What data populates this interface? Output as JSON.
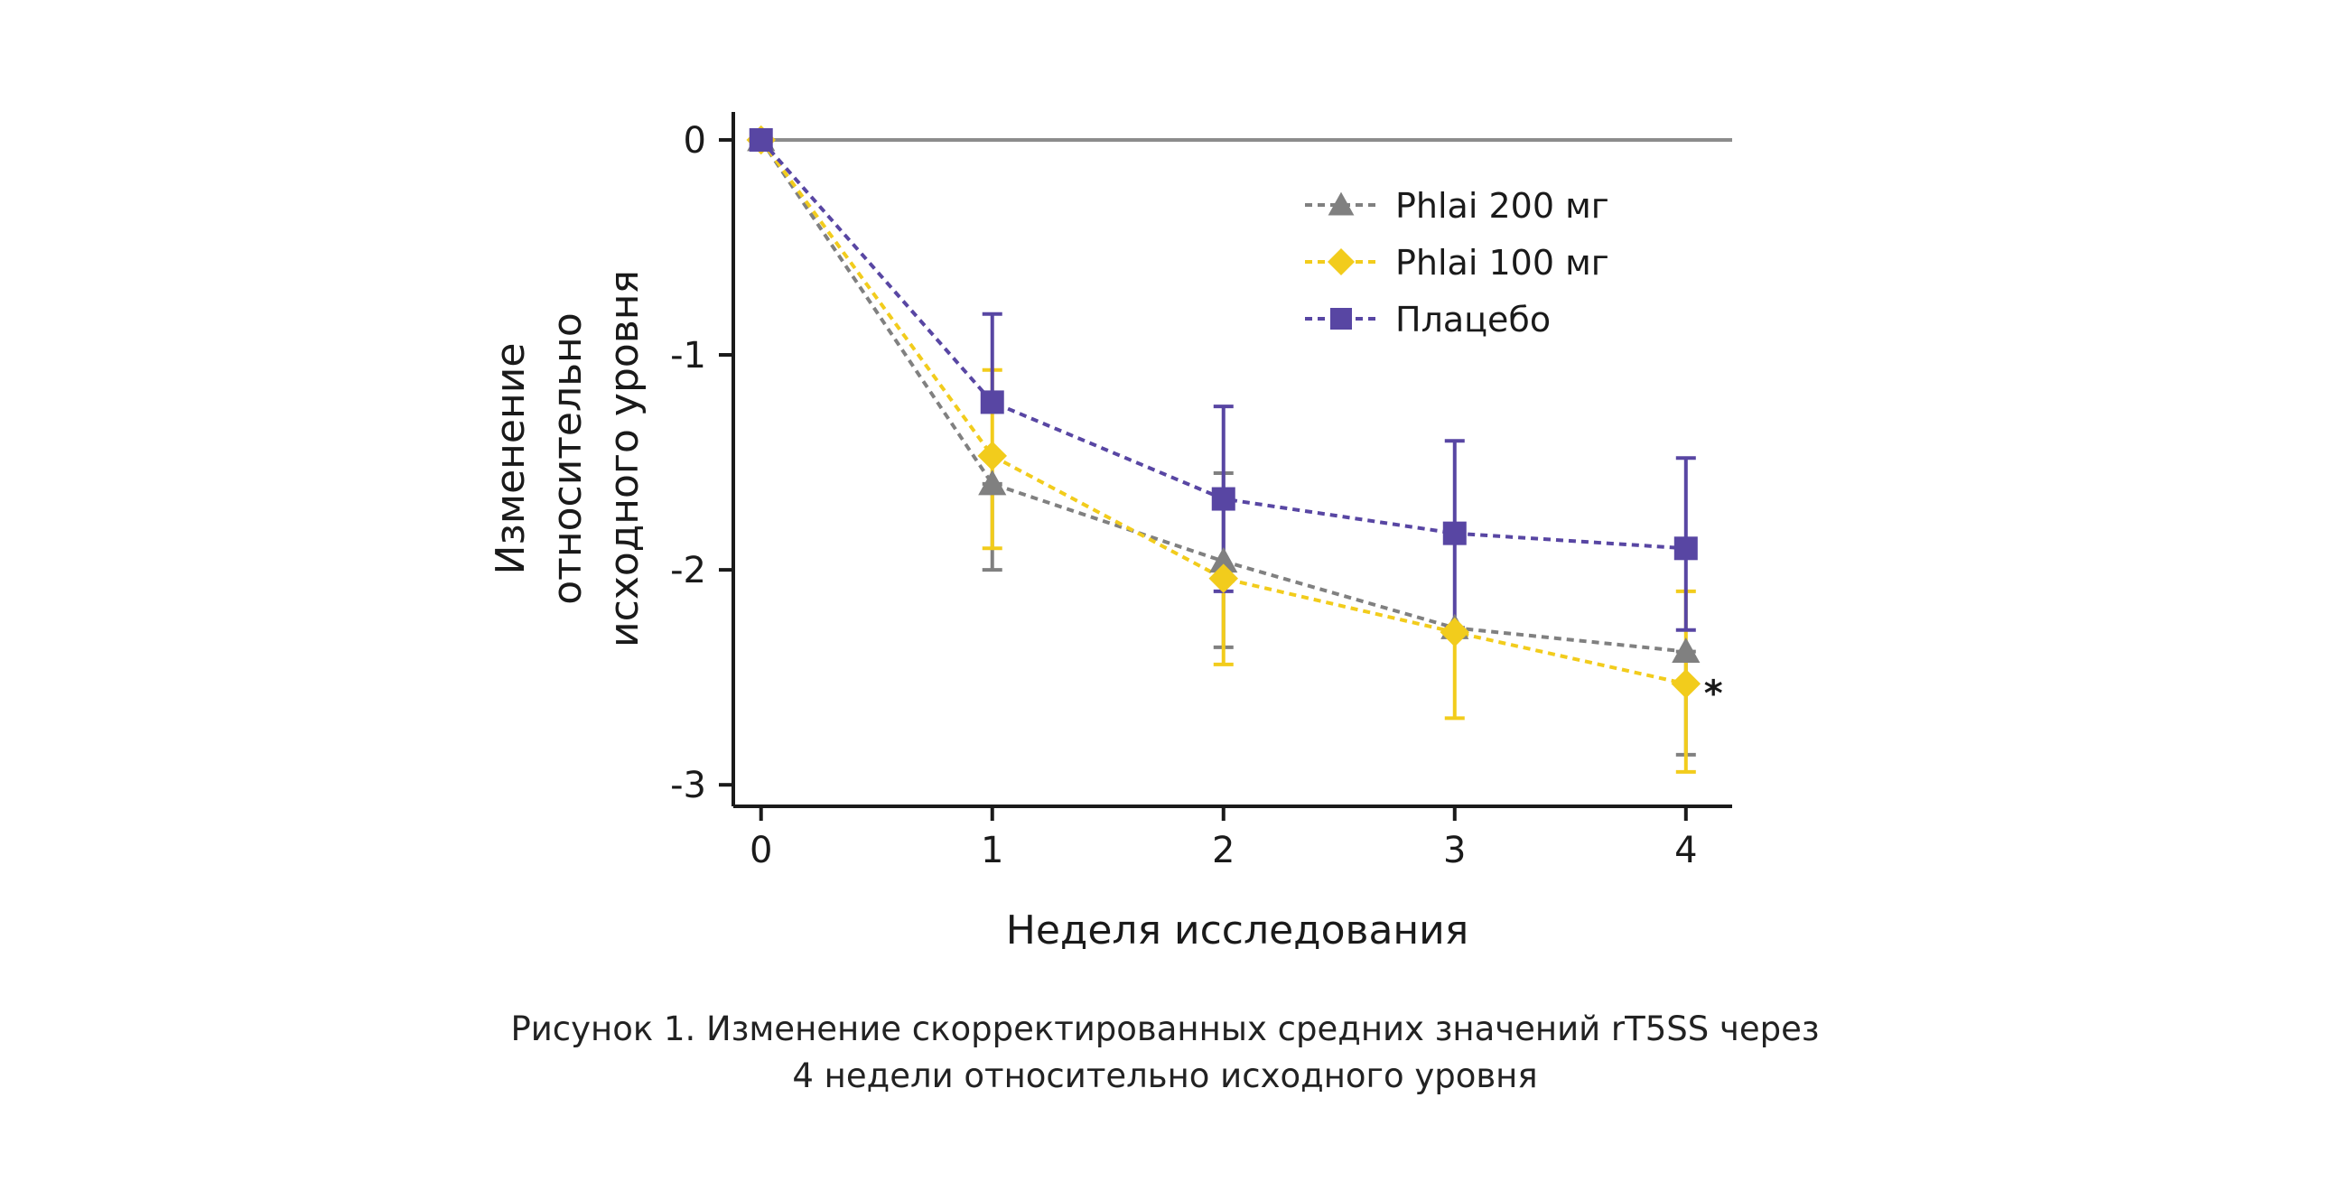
{
  "chart_data": {
    "type": "line",
    "title": "",
    "xlabel": "Неделя исследования",
    "ylabel_lines": [
      "Изменение",
      "относительно",
      "исходного уровня"
    ],
    "x": [
      0,
      1,
      2,
      3,
      4
    ],
    "xticks": [
      "0",
      "1",
      "2",
      "3",
      "4"
    ],
    "yticks": [
      "0",
      "-1",
      "-2",
      "-3"
    ],
    "xlim": [
      -0.12,
      4.2
    ],
    "ylim": [
      -3.1,
      0.13
    ],
    "reference_line_y": 0,
    "grid": false,
    "legend_position": "top-right",
    "series": [
      {
        "name": "Phlai 200 мг",
        "marker": "triangle",
        "color": "#808080",
        "values": [
          0,
          -1.6,
          -1.96,
          -2.27,
          -2.38
        ],
        "err_low": [
          0,
          -2.0,
          -2.36,
          -2.28,
          -2.86
        ],
        "err_high": [
          0,
          -1.6,
          -1.55,
          -2.27,
          -2.38
        ]
      },
      {
        "name": "Phlai 100 мг",
        "marker": "diamond",
        "color": "#F2CC1C",
        "values": [
          0,
          -1.47,
          -2.04,
          -2.29,
          -2.53
        ],
        "err_low": [
          0,
          -1.9,
          -2.44,
          -2.69,
          -2.94
        ],
        "err_high": [
          0,
          -1.07,
          -2.04,
          -2.29,
          -2.1
        ]
      },
      {
        "name": "Плацебо",
        "marker": "square",
        "color": "#5846A3",
        "values": [
          0,
          -1.22,
          -1.67,
          -1.83,
          -1.9
        ],
        "err_low": [
          0,
          -1.22,
          -2.1,
          -2.27,
          -2.28
        ],
        "err_high": [
          0,
          -0.81,
          -1.24,
          -1.4,
          -1.48
        ]
      }
    ],
    "annotations": [
      {
        "text": "*",
        "x": 4,
        "y": -2.53,
        "series": "Phlai 100 мг"
      }
    ]
  },
  "caption": {
    "line1": "Рисунок 1. Изменение скорректированных средних значений rT5SS через",
    "line2": "4 недели относительно исходного уровня"
  }
}
